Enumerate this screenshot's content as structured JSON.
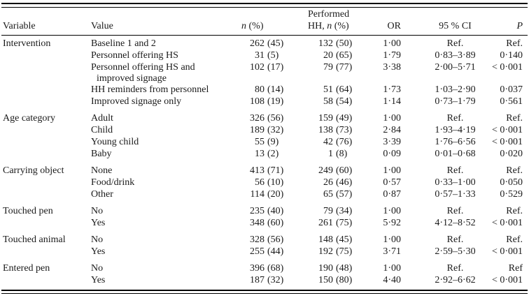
{
  "page": {
    "background": "#ffffff",
    "text_color": "#1a1a1a",
    "rule_color": "#000000"
  },
  "table": {
    "header": {
      "variable": "Variable",
      "value": "Value",
      "n_italic": "n",
      "n_rest": " (%)",
      "performed": "Performed",
      "hh_prefix": "HH, ",
      "hh_n": "n",
      "hh_suffix": " (%)",
      "or": "OR",
      "ci": "95 % CI",
      "p": "P"
    },
    "groups": [
      {
        "variable": "Intervention",
        "rows": [
          {
            "value": "Baseline 1 and 2",
            "n": "262",
            "pct": "(45)",
            "hh_n": "132",
            "hh_pct": "(50)",
            "or": "1·00",
            "ci": "Ref.",
            "p": "Ref."
          },
          {
            "value": "Personnel offering HS",
            "n": "31",
            "pct": "(5)",
            "hh_n": "20",
            "hh_pct": "(65)",
            "or": "1·79",
            "ci": "0·83–3·89",
            "p": "0·140"
          },
          {
            "value": "Personnel offering HS and",
            "value2": "improved signage",
            "n": "102",
            "pct": "(17)",
            "hh_n": "79",
            "hh_pct": "(77)",
            "or": "3·38",
            "ci": "2·00–5·71",
            "p": "< 0·001"
          },
          {
            "value": "HH reminders from personnel",
            "n": "80",
            "pct": "(14)",
            "hh_n": "51",
            "hh_pct": "(64)",
            "or": "1·73",
            "ci": "1·03–2·90",
            "p": "0·037"
          },
          {
            "value": "Improved signage only",
            "n": "108",
            "pct": "(19)",
            "hh_n": "58",
            "hh_pct": "(54)",
            "or": "1·14",
            "ci": "0·73–1·79",
            "p": "0·561"
          }
        ]
      },
      {
        "variable": "Age category",
        "rows": [
          {
            "value": "Adult",
            "n": "326",
            "pct": "(56)",
            "hh_n": "159",
            "hh_pct": "(49)",
            "or": "1·00",
            "ci": "Ref.",
            "p": "Ref."
          },
          {
            "value": "Child",
            "n": "189",
            "pct": "(32)",
            "hh_n": "138",
            "hh_pct": "(73)",
            "or": "2·84",
            "ci": "1·93–4·19",
            "p": "< 0·001"
          },
          {
            "value": "Young child",
            "n": "55",
            "pct": "(9)",
            "hh_n": "42",
            "hh_pct": "(76)",
            "or": "3·39",
            "ci": "1·76–6·56",
            "p": "< 0·001"
          },
          {
            "value": "Baby",
            "n": "13",
            "pct": "(2)",
            "hh_n": "1",
            "hh_pct": "(8)",
            "or": "0·09",
            "ci": "0·01–0·68",
            "p": "0·020"
          }
        ]
      },
      {
        "variable": "Carrying object",
        "rows": [
          {
            "value": "None",
            "n": "413",
            "pct": "(71)",
            "hh_n": "249",
            "hh_pct": "(60)",
            "or": "1·00",
            "ci": "Ref.",
            "p": "Ref."
          },
          {
            "value": "Food/drink",
            "n": "56",
            "pct": "(10)",
            "hh_n": "26",
            "hh_pct": "(46)",
            "or": "0·57",
            "ci": "0·33–1·00",
            "p": "0·050"
          },
          {
            "value": "Other",
            "n": "114",
            "pct": "(20)",
            "hh_n": "65",
            "hh_pct": "(57)",
            "or": "0·87",
            "ci": "0·57–1·33",
            "p": "0·529"
          }
        ]
      },
      {
        "variable": "Touched pen",
        "rows": [
          {
            "value": "No",
            "n": "235",
            "pct": "(40)",
            "hh_n": "79",
            "hh_pct": "(34)",
            "or": "1·00",
            "ci": "Ref.",
            "p": "Ref."
          },
          {
            "value": "Yes",
            "n": "348",
            "pct": "(60)",
            "hh_n": "261",
            "hh_pct": "(75)",
            "or": "5·92",
            "ci": "4·12–8·52",
            "p": "< 0·001"
          }
        ]
      },
      {
        "variable": "Touched animal",
        "rows": [
          {
            "value": "No",
            "n": "328",
            "pct": "(56)",
            "hh_n": "148",
            "hh_pct": "(45)",
            "or": "1·00",
            "ci": "Ref.",
            "p": "Ref."
          },
          {
            "value": "Yes",
            "n": "255",
            "pct": "(44)",
            "hh_n": "192",
            "hh_pct": "(75)",
            "or": "3·71",
            "ci": "2·59–5·30",
            "p": "< 0·001"
          }
        ]
      },
      {
        "variable": "Entered pen",
        "rows": [
          {
            "value": "No",
            "n": "396",
            "pct": "(68)",
            "hh_n": "190",
            "hh_pct": "(48)",
            "or": "1·00",
            "ci": "Ref.",
            "p": "Ref"
          },
          {
            "value": "Yes",
            "n": "187",
            "pct": "(32)",
            "hh_n": "150",
            "hh_pct": "(80)",
            "or": "4·40",
            "ci": "2·92–6·62",
            "p": "< 0·001"
          }
        ]
      }
    ]
  }
}
